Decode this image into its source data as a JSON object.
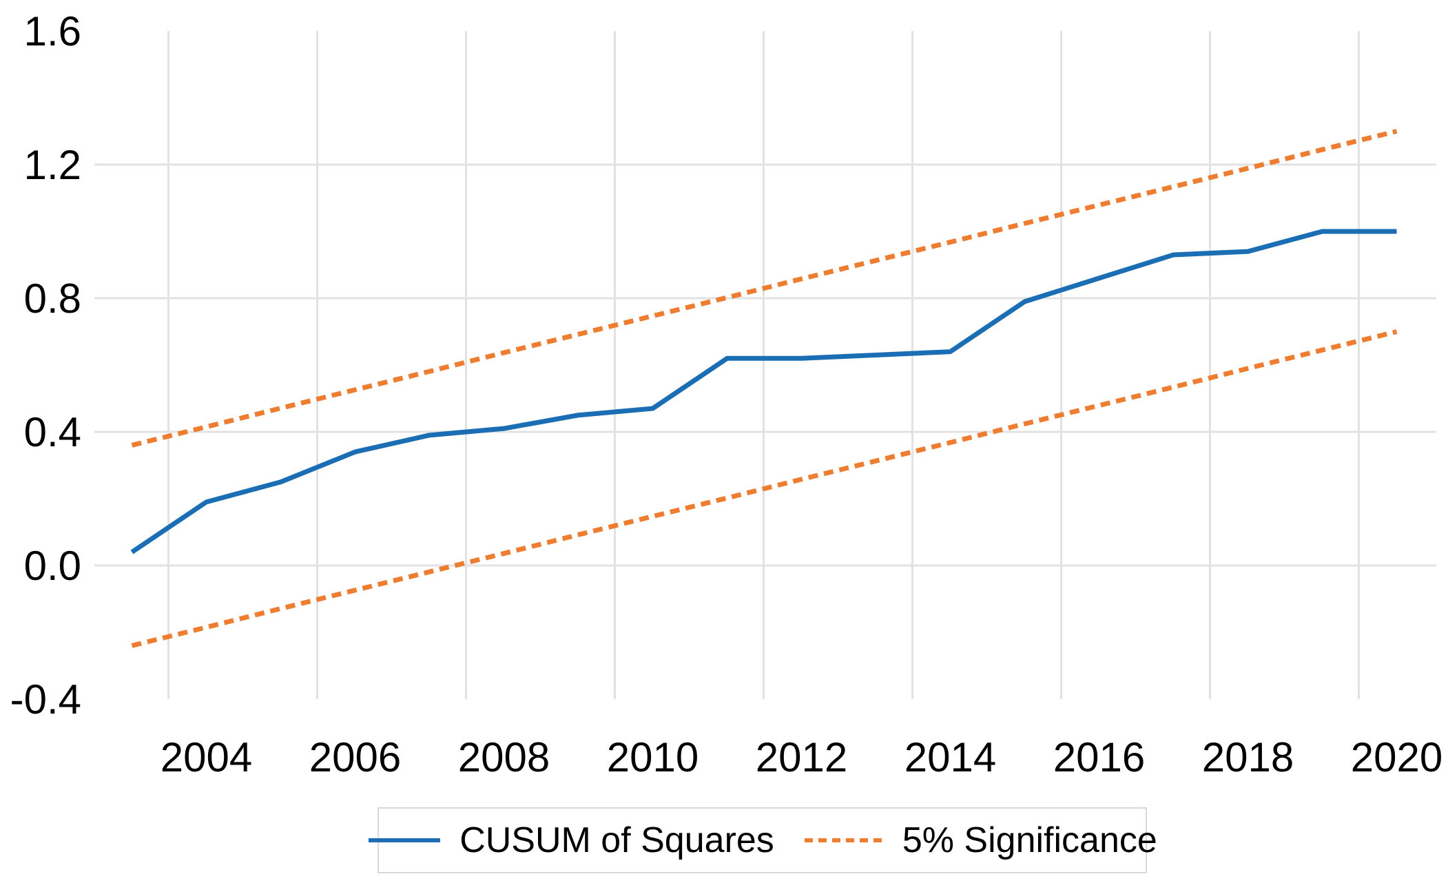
{
  "page": {
    "background_color": "#FFFFFF",
    "text_color": "#000000",
    "gridline_color": "#E2E2E2",
    "legend_border_color": "#D9D9D9"
  },
  "axes": {
    "x_tick_labels": [
      "2004",
      "2006",
      "2008",
      "2010",
      "2012",
      "2014",
      "2016",
      "2018",
      "2020"
    ],
    "x_tick_values": [
      2004,
      2006,
      2008,
      2010,
      2012,
      2014,
      2016,
      2018,
      2020
    ],
    "y_tick_labels": [
      "1.6",
      "1.2",
      "0.8",
      "0.4",
      "0.0",
      "-0.4"
    ],
    "y_tick_values": [
      1.6,
      1.2,
      0.8,
      0.4,
      0.0,
      -0.4
    ]
  },
  "legend": {
    "items": [
      {
        "label": "CUSUM of Squares",
        "color": "#1B6DB4",
        "style": "solid"
      },
      {
        "label": "5% Significance",
        "color": "#ED7D31",
        "style": "dashed"
      }
    ]
  },
  "chart_data": {
    "type": "line",
    "title": "",
    "xlabel": "",
    "ylabel": "",
    "x": [
      2003,
      2004,
      2005,
      2006,
      2007,
      2008,
      2009,
      2010,
      2011,
      2012,
      2013,
      2014,
      2015,
      2016,
      2017,
      2018,
      2019,
      2020
    ],
    "series": [
      {
        "name": "CUSUM of Squares",
        "color": "#1B6DB4",
        "line_style": "solid",
        "values": [
          0.04,
          0.19,
          0.25,
          0.34,
          0.39,
          0.41,
          0.45,
          0.47,
          0.62,
          0.62,
          0.63,
          0.64,
          0.79,
          0.86,
          0.93,
          0.94,
          1.0,
          1.0
        ]
      },
      {
        "name": "5% Significance (upper band)",
        "color": "#ED7D31",
        "line_style": "dashed",
        "values": [
          0.36,
          0.415,
          0.471,
          0.526,
          0.581,
          0.637,
          0.692,
          0.747,
          0.802,
          0.858,
          0.913,
          0.968,
          1.024,
          1.079,
          1.134,
          1.189,
          1.245,
          1.3
        ]
      },
      {
        "name": "5% Significance (lower band)",
        "color": "#ED7D31",
        "line_style": "dashed",
        "values": [
          -0.24,
          -0.185,
          -0.129,
          -0.074,
          -0.019,
          0.036,
          0.092,
          0.147,
          0.202,
          0.258,
          0.313,
          0.368,
          0.424,
          0.479,
          0.534,
          0.59,
          0.645,
          0.7
        ]
      }
    ],
    "xlim": [
      2002.5,
      2020.5
    ],
    "ylim": [
      -0.4,
      1.6
    ],
    "grid": true,
    "legend_position": "bottom"
  }
}
